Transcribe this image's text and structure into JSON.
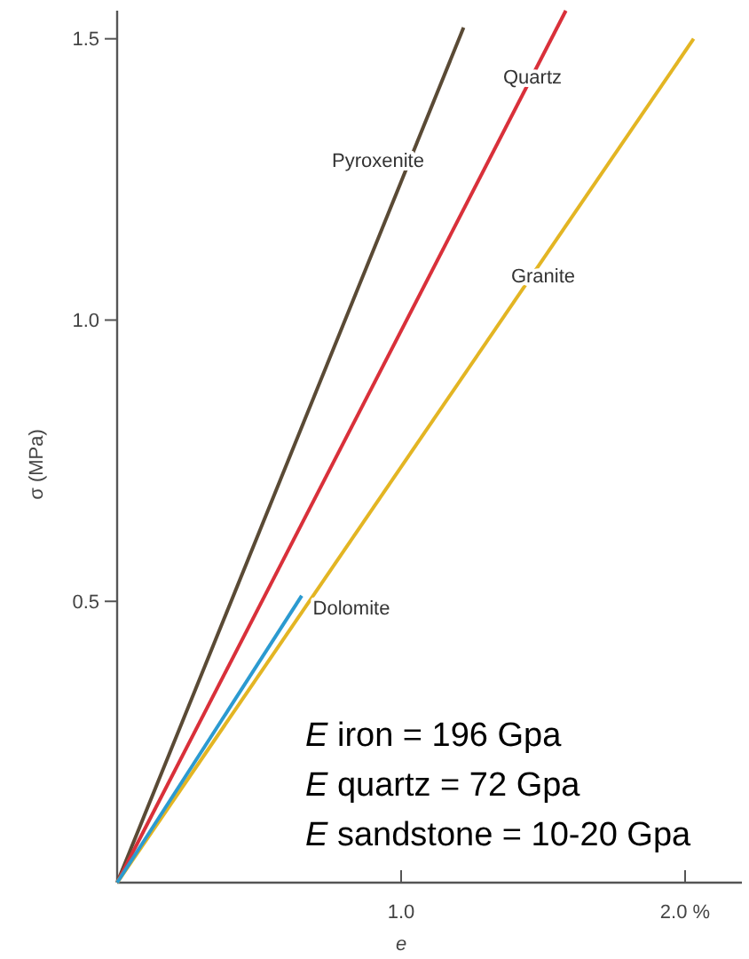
{
  "chart_data": {
    "type": "line",
    "xlabel": "e",
    "ylabel": "σ (MPa)",
    "xlim": [
      0,
      2.2
    ],
    "ylim": [
      0,
      1.55
    ],
    "xticks": [
      {
        "value": 1,
        "label": "1.0"
      },
      {
        "value": 2,
        "label": "2.0 %"
      }
    ],
    "yticks": [
      0.5,
      {
        "value": 1,
        "label": "1.0"
      },
      1.5
    ],
    "grid": false,
    "marker": "none",
    "line_style": "solid",
    "series": [
      {
        "name": "Pyroxenite",
        "color": "#5a4a35",
        "x": [
          0,
          1.22
        ],
        "values": [
          0,
          1.52
        ]
      },
      {
        "name": "Quartz",
        "color": "#d9303a",
        "x": [
          0,
          1.58
        ],
        "values": [
          0,
          1.55
        ]
      },
      {
        "name": "Granite",
        "color": "#e3b523",
        "x": [
          0,
          2.03
        ],
        "values": [
          0,
          1.5
        ]
      },
      {
        "name": "Dolomite",
        "color": "#2b9ad0",
        "x": [
          0,
          0.65
        ],
        "values": [
          0,
          0.51
        ]
      }
    ],
    "annotations": [
      "E iron = 196 Gpa",
      "E quartz = 72 Gpa",
      "E sandstone = 10-20 Gpa"
    ]
  }
}
